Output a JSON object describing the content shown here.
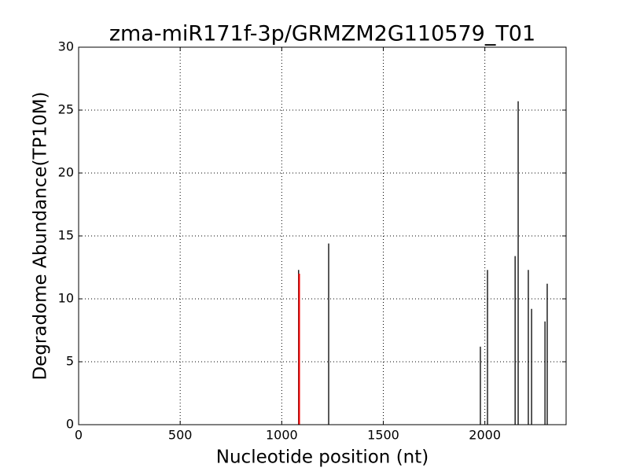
{
  "chart_data": {
    "type": "stem",
    "title": "zma-miR171f-3p/GRMZM2G110579_T01",
    "xlabel": "Nucleotide position (nt)",
    "ylabel": "Degradome Abundance(TP10M)",
    "xlim": [
      0,
      2400
    ],
    "xticks": [
      0,
      500,
      1000,
      1500,
      2000
    ],
    "ylim": [
      0,
      30
    ],
    "yticks": [
      0,
      5,
      10,
      15,
      20,
      25,
      30
    ],
    "grid": true,
    "series": [
      {
        "color": "#000000",
        "x": [
          1083,
          1231,
          1978,
          2013,
          2149,
          2164,
          2214,
          2230,
          2296,
          2307
        ],
        "values": [
          12.3,
          14.4,
          6.2,
          12.3,
          13.4,
          25.7,
          12.3,
          9.2,
          8.2,
          11.2
        ]
      },
      {
        "color": "#ff0000",
        "x": [
          1086
        ],
        "values": [
          12.0
        ]
      }
    ]
  }
}
